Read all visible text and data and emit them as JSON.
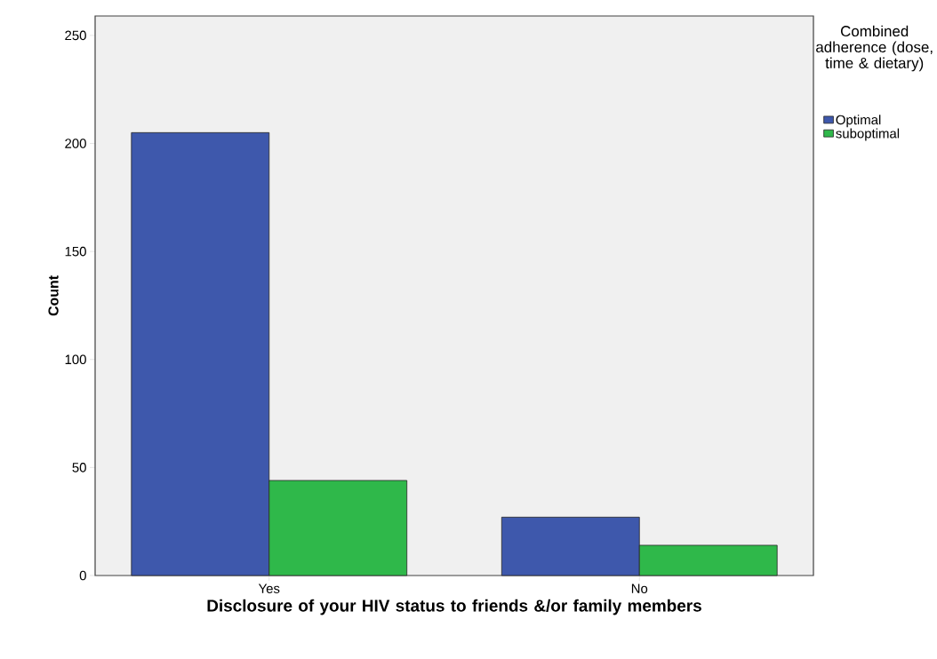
{
  "chart_data": {
    "type": "bar",
    "xlabel": "Disclosure of your HIV status to friends &/or family members",
    "ylabel": "Count",
    "legend_title": "Combined adherence (dose, time & dietary)",
    "categories": [
      "Yes",
      "No"
    ],
    "series": [
      {
        "name": "Optimal",
        "color": "#3e58ac",
        "values": [
          205,
          27
        ]
      },
      {
        "name": "suboptimal",
        "color": "#2fb84a",
        "values": [
          44,
          14
        ]
      }
    ],
    "ylim": [
      0,
      259
    ],
    "yticks": [
      0,
      50,
      100,
      150,
      200,
      250
    ],
    "legend": "right"
  }
}
